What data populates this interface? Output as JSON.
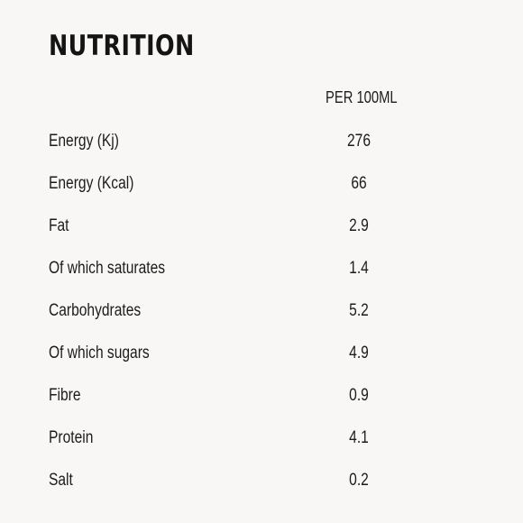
{
  "title": "NUTRITION",
  "column_header": "PER 100ML",
  "rows": [
    {
      "label": "Energy (Kj)",
      "value": "276"
    },
    {
      "label": "Energy (Kcal)",
      "value": "66"
    },
    {
      "label": "Fat",
      "value": "2.9"
    },
    {
      "label": "Of which saturates",
      "value": "1.4"
    },
    {
      "label": "Carbohydrates",
      "value": "5.2"
    },
    {
      "label": "Of which sugars",
      "value": "4.9"
    },
    {
      "label": "Fibre",
      "value": "0.9"
    },
    {
      "label": "Protein",
      "value": "4.1"
    },
    {
      "label": "Salt",
      "value": "0.2"
    }
  ]
}
